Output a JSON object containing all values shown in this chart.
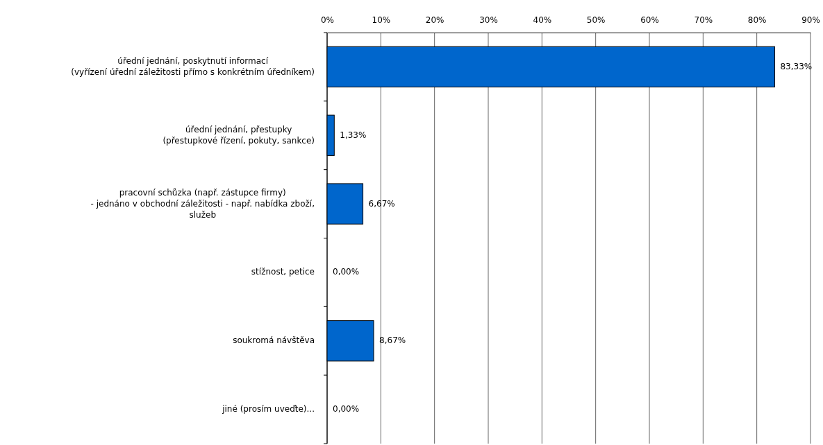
{
  "chart_data": {
    "type": "bar",
    "orientation": "horizontal",
    "categories": [
      "úřední jednání, poskytnutí informací\n(vyřízení úřední záležitosti přímo s konkrétním úředníkem)",
      "úřední jednání, přestupky\n(přestupkové řízení, pokuty, sankce)",
      "pracovní schůzka (např. zástupce firmy)\n- jednáno v obchodní záležitosti - např. nabídka zboží,\nslužeb",
      "stížnost, petice",
      "soukromá návštěva",
      "jiné (prosím uveďte)..."
    ],
    "values": [
      83.33,
      1.33,
      6.67,
      0,
      8.67,
      0
    ],
    "color": "#0066cc",
    "value_labels": [
      "83,33%",
      "1,33%",
      "6,67%",
      "0,00%",
      "8,67%",
      "0,00%"
    ],
    "xlim": [
      0,
      90
    ],
    "xticks": [
      {
        "value": 0,
        "label": "0%"
      },
      {
        "value": 10,
        "label": "10%"
      },
      {
        "value": 20,
        "label": "20%"
      },
      {
        "value": 30,
        "label": "30%"
      },
      {
        "value": 40,
        "label": "40%"
      },
      {
        "value": 50,
        "label": "50%"
      },
      {
        "value": 60,
        "label": "60%"
      },
      {
        "value": 70,
        "label": "70%"
      },
      {
        "value": 80,
        "label": "80%"
      },
      {
        "value": 90,
        "label": "90%"
      }
    ],
    "grid": "x"
  }
}
